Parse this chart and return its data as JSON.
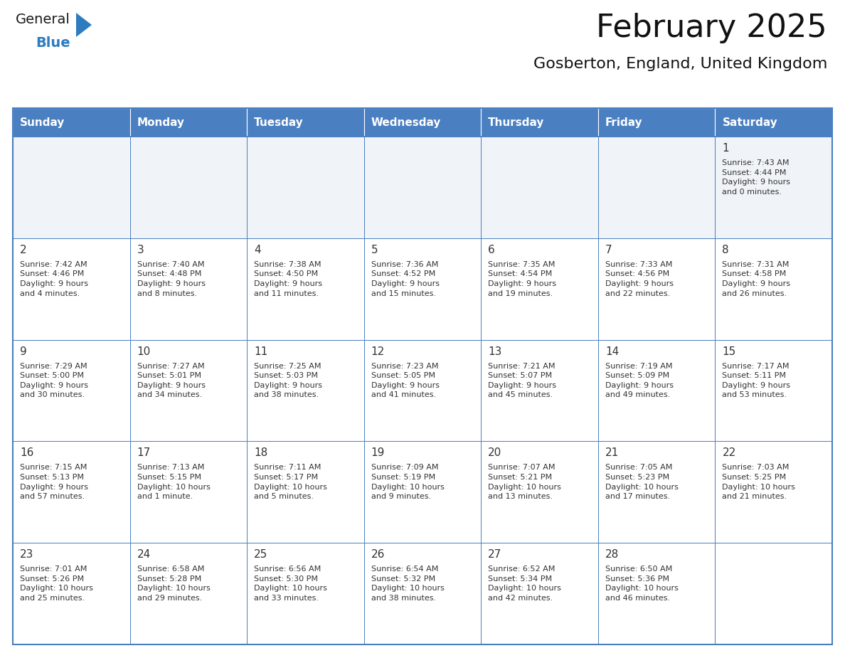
{
  "title": "February 2025",
  "subtitle": "Gosberton, England, United Kingdom",
  "header_color": "#4a7fc1",
  "header_text_color": "#ffffff",
  "cell_bg_week0": "#f0f4f8",
  "cell_bg_week1": "#ffffff",
  "cell_bg_week2": "#ffffff",
  "cell_bg_week3": "#ffffff",
  "cell_bg_week4": "#ffffff",
  "border_color": "#4a7fc1",
  "text_color": "#333333",
  "days_of_week": [
    "Sunday",
    "Monday",
    "Tuesday",
    "Wednesday",
    "Thursday",
    "Friday",
    "Saturday"
  ],
  "weeks": [
    [
      {
        "day": null,
        "info": ""
      },
      {
        "day": null,
        "info": ""
      },
      {
        "day": null,
        "info": ""
      },
      {
        "day": null,
        "info": ""
      },
      {
        "day": null,
        "info": ""
      },
      {
        "day": null,
        "info": ""
      },
      {
        "day": 1,
        "info": "Sunrise: 7:43 AM\nSunset: 4:44 PM\nDaylight: 9 hours\nand 0 minutes."
      }
    ],
    [
      {
        "day": 2,
        "info": "Sunrise: 7:42 AM\nSunset: 4:46 PM\nDaylight: 9 hours\nand 4 minutes."
      },
      {
        "day": 3,
        "info": "Sunrise: 7:40 AM\nSunset: 4:48 PM\nDaylight: 9 hours\nand 8 minutes."
      },
      {
        "day": 4,
        "info": "Sunrise: 7:38 AM\nSunset: 4:50 PM\nDaylight: 9 hours\nand 11 minutes."
      },
      {
        "day": 5,
        "info": "Sunrise: 7:36 AM\nSunset: 4:52 PM\nDaylight: 9 hours\nand 15 minutes."
      },
      {
        "day": 6,
        "info": "Sunrise: 7:35 AM\nSunset: 4:54 PM\nDaylight: 9 hours\nand 19 minutes."
      },
      {
        "day": 7,
        "info": "Sunrise: 7:33 AM\nSunset: 4:56 PM\nDaylight: 9 hours\nand 22 minutes."
      },
      {
        "day": 8,
        "info": "Sunrise: 7:31 AM\nSunset: 4:58 PM\nDaylight: 9 hours\nand 26 minutes."
      }
    ],
    [
      {
        "day": 9,
        "info": "Sunrise: 7:29 AM\nSunset: 5:00 PM\nDaylight: 9 hours\nand 30 minutes."
      },
      {
        "day": 10,
        "info": "Sunrise: 7:27 AM\nSunset: 5:01 PM\nDaylight: 9 hours\nand 34 minutes."
      },
      {
        "day": 11,
        "info": "Sunrise: 7:25 AM\nSunset: 5:03 PM\nDaylight: 9 hours\nand 38 minutes."
      },
      {
        "day": 12,
        "info": "Sunrise: 7:23 AM\nSunset: 5:05 PM\nDaylight: 9 hours\nand 41 minutes."
      },
      {
        "day": 13,
        "info": "Sunrise: 7:21 AM\nSunset: 5:07 PM\nDaylight: 9 hours\nand 45 minutes."
      },
      {
        "day": 14,
        "info": "Sunrise: 7:19 AM\nSunset: 5:09 PM\nDaylight: 9 hours\nand 49 minutes."
      },
      {
        "day": 15,
        "info": "Sunrise: 7:17 AM\nSunset: 5:11 PM\nDaylight: 9 hours\nand 53 minutes."
      }
    ],
    [
      {
        "day": 16,
        "info": "Sunrise: 7:15 AM\nSunset: 5:13 PM\nDaylight: 9 hours\nand 57 minutes."
      },
      {
        "day": 17,
        "info": "Sunrise: 7:13 AM\nSunset: 5:15 PM\nDaylight: 10 hours\nand 1 minute."
      },
      {
        "day": 18,
        "info": "Sunrise: 7:11 AM\nSunset: 5:17 PM\nDaylight: 10 hours\nand 5 minutes."
      },
      {
        "day": 19,
        "info": "Sunrise: 7:09 AM\nSunset: 5:19 PM\nDaylight: 10 hours\nand 9 minutes."
      },
      {
        "day": 20,
        "info": "Sunrise: 7:07 AM\nSunset: 5:21 PM\nDaylight: 10 hours\nand 13 minutes."
      },
      {
        "day": 21,
        "info": "Sunrise: 7:05 AM\nSunset: 5:23 PM\nDaylight: 10 hours\nand 17 minutes."
      },
      {
        "day": 22,
        "info": "Sunrise: 7:03 AM\nSunset: 5:25 PM\nDaylight: 10 hours\nand 21 minutes."
      }
    ],
    [
      {
        "day": 23,
        "info": "Sunrise: 7:01 AM\nSunset: 5:26 PM\nDaylight: 10 hours\nand 25 minutes."
      },
      {
        "day": 24,
        "info": "Sunrise: 6:58 AM\nSunset: 5:28 PM\nDaylight: 10 hours\nand 29 minutes."
      },
      {
        "day": 25,
        "info": "Sunrise: 6:56 AM\nSunset: 5:30 PM\nDaylight: 10 hours\nand 33 minutes."
      },
      {
        "day": 26,
        "info": "Sunrise: 6:54 AM\nSunset: 5:32 PM\nDaylight: 10 hours\nand 38 minutes."
      },
      {
        "day": 27,
        "info": "Sunrise: 6:52 AM\nSunset: 5:34 PM\nDaylight: 10 hours\nand 42 minutes."
      },
      {
        "day": 28,
        "info": "Sunrise: 6:50 AM\nSunset: 5:36 PM\nDaylight: 10 hours\nand 46 minutes."
      },
      {
        "day": null,
        "info": ""
      }
    ]
  ],
  "logo_color_general": "#1a1a1a",
  "logo_color_blue": "#2e7bbf",
  "logo_triangle_color": "#2e7bbf",
  "title_fontsize": 32,
  "subtitle_fontsize": 16,
  "header_fontsize": 11,
  "day_num_fontsize": 11,
  "info_fontsize": 8
}
